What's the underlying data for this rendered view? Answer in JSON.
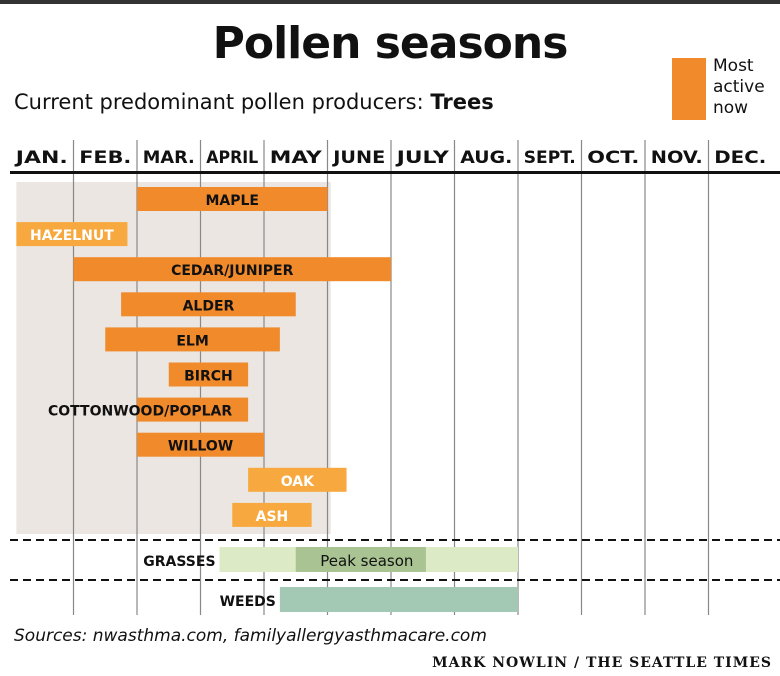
{
  "title": "Pollen seasons",
  "subtitle_prefix": "Current predominant pollen producers: ",
  "subtitle_emphasis": "Trees",
  "legend": {
    "line1": "Most",
    "line2": "active",
    "line3": "now",
    "color": "#f08a2b"
  },
  "source": "Sources: nwasthma.com, familyallergyasthmacare.com",
  "credit": "MARK NOWLIN / THE SEATTLE TIMES",
  "colors": {
    "most_active": "#f08a2b",
    "less_active": "#f7a93f",
    "current_shade": "#ebe6e1",
    "grass": "#dcebc5",
    "grass_peak": "#a9c492",
    "weeds": "#a3c8b3",
    "grid": "#888888"
  },
  "chart_data": {
    "type": "gantt",
    "x_unit": "month (1 = start of January, 13 = end of December)",
    "months": [
      "JAN.",
      "FEB.",
      "MAR.",
      "APRIL",
      "MAY",
      "JUNE",
      "JULY",
      "AUG.",
      "SEPT.",
      "OCT.",
      "NOV.",
      "DEC."
    ],
    "current_season_shade": [
      1.1,
      6.05
    ],
    "trees": [
      {
        "label": "MAPLE",
        "start": 3.0,
        "end": 6.0,
        "most_active": true
      },
      {
        "label": "HAZELNUT",
        "start": 1.1,
        "end": 2.85,
        "most_active": false
      },
      {
        "label": "CEDAR/JUNIPER",
        "start": 2.0,
        "end": 7.0,
        "most_active": true
      },
      {
        "label": "ALDER",
        "start": 2.75,
        "end": 5.5,
        "most_active": true
      },
      {
        "label": "ELM",
        "start": 2.5,
        "end": 5.25,
        "most_active": true
      },
      {
        "label": "BIRCH",
        "start": 3.5,
        "end": 4.75,
        "most_active": true
      },
      {
        "label": "COTTONWOOD/POPLAR",
        "start": 3.0,
        "end": 4.75,
        "most_active": true,
        "label_outside": true
      },
      {
        "label": "WILLOW",
        "start": 3.0,
        "end": 5.0,
        "most_active": true
      },
      {
        "label": "OAK",
        "start": 4.75,
        "end": 6.3,
        "most_active": false
      },
      {
        "label": "ASH",
        "start": 4.5,
        "end": 5.75,
        "most_active": false
      }
    ],
    "grasses": {
      "label": "GRASSES",
      "start": 4.3,
      "end": 9.0,
      "peak_label": "Peak season",
      "peak_start": 5.5,
      "peak_end": 7.55
    },
    "weeds": {
      "label": "WEEDS",
      "start": 5.25,
      "end": 9.0
    }
  }
}
